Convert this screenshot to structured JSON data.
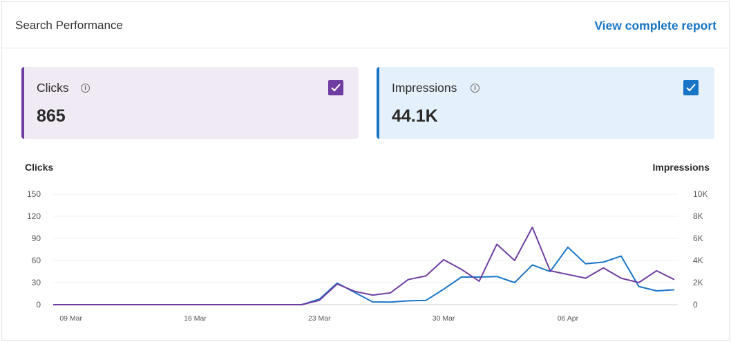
{
  "header": {
    "title": "Search Performance",
    "link": "View complete report"
  },
  "metrics": {
    "clicks": {
      "label": "Clicks",
      "value": "865",
      "checked": true,
      "color": "#6f3da1"
    },
    "impressions": {
      "label": "Impressions",
      "value": "44.1K",
      "checked": true,
      "color": "#1874c6"
    }
  },
  "chart_data": {
    "type": "line",
    "left_axis": {
      "title": "Clicks",
      "ticks": [
        "0",
        "30",
        "60",
        "90",
        "120",
        "150"
      ],
      "min": 0,
      "max": 150
    },
    "right_axis": {
      "title": "Impressions",
      "ticks": [
        "0",
        "2K",
        "4K",
        "6K",
        "8K",
        "10K"
      ],
      "min": 0,
      "max": 10000
    },
    "x_ticks": [
      "09 Mar",
      "16 Mar",
      "23 Mar",
      "30 Mar",
      "06 Apr"
    ],
    "x": [
      "08 Mar",
      "09 Mar",
      "10 Mar",
      "11 Mar",
      "12 Mar",
      "13 Mar",
      "14 Mar",
      "15 Mar",
      "16 Mar",
      "17 Mar",
      "18 Mar",
      "19 Mar",
      "20 Mar",
      "21 Mar",
      "22 Mar",
      "23 Mar",
      "24 Mar",
      "25 Mar",
      "26 Mar",
      "27 Mar",
      "28 Mar",
      "29 Mar",
      "30 Mar",
      "31 Mar",
      "01 Apr",
      "02 Apr",
      "03 Apr",
      "04 Apr",
      "05 Apr",
      "06 Apr",
      "07 Apr",
      "08 Apr",
      "09 Apr",
      "10 Apr",
      "11 Apr",
      "12 Apr"
    ],
    "series": [
      {
        "name": "Clicks",
        "axis": "left",
        "color": "#6f3da1",
        "values": [
          0,
          0,
          0,
          0,
          0,
          0,
          0,
          0,
          0,
          0,
          0,
          0,
          0,
          0,
          0,
          6,
          28,
          18,
          13,
          16,
          34,
          39,
          61,
          48,
          32,
          82,
          60,
          105,
          46,
          41,
          36,
          50,
          36,
          30,
          46,
          34
        ]
      },
      {
        "name": "Impressions",
        "axis": "right",
        "color": "#1874c6",
        "values": [
          0,
          0,
          0,
          0,
          0,
          0,
          0,
          0,
          0,
          0,
          0,
          0,
          0,
          0,
          0,
          500,
          1950,
          1100,
          250,
          230,
          350,
          390,
          1400,
          2500,
          2500,
          2550,
          2000,
          3600,
          3000,
          5200,
          3700,
          3850,
          4400,
          1650,
          1250,
          1350
        ]
      }
    ]
  }
}
